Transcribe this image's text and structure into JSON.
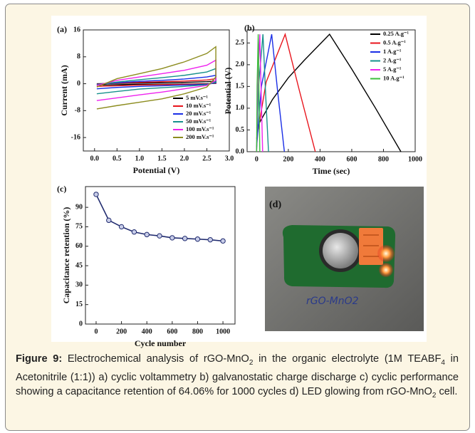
{
  "chart_data": [
    {
      "type": "line",
      "panel_label": "(a)",
      "xlabel": "Potential (V)",
      "ylabel": "Current (mA)",
      "x": [
        0.05,
        0.5,
        1.0,
        1.5,
        2.0,
        2.5,
        2.7,
        2.7,
        2.5,
        2.0,
        1.5,
        1.0,
        0.5,
        0.05
      ],
      "series": [
        {
          "name": "5 mV.s⁻¹",
          "color": "#000000",
          "values": [
            0,
            0.1,
            0.2,
            0.3,
            0.4,
            0.6,
            0.8,
            0.1,
            0,
            -0.1,
            -0.15,
            -0.2,
            -0.3,
            -0.4
          ]
        },
        {
          "name": "10 mV.s⁻¹",
          "color": "#e8141c",
          "values": [
            -0.1,
            0.2,
            0.4,
            0.6,
            0.8,
            1.1,
            1.5,
            0.2,
            -0.1,
            -0.2,
            -0.3,
            -0.4,
            -0.6,
            -0.8
          ]
        },
        {
          "name": "20 mV.s⁻¹",
          "color": "#1a2ee6",
          "values": [
            -0.2,
            0.3,
            0.7,
            1,
            1.4,
            2,
            2.5,
            0.3,
            -0.2,
            -0.4,
            -0.6,
            -0.8,
            -1.1,
            -1.5
          ]
        },
        {
          "name": "50 mV.s⁻¹",
          "color": "#17908c",
          "values": [
            -0.3,
            0.5,
            1.2,
            1.8,
            2.5,
            3.5,
            4.5,
            0.5,
            -0.3,
            -0.8,
            -1.2,
            -1.6,
            -2.3,
            -3
          ]
        },
        {
          "name": "100 mV.s⁻¹",
          "color": "#ee22ee",
          "values": [
            -0.5,
            1,
            2,
            3,
            4,
            5.5,
            7,
            1,
            -0.5,
            -1.5,
            -2.5,
            -3.3,
            -4.2,
            -5
          ]
        },
        {
          "name": "200 mV.s⁻¹",
          "color": "#8c8c1e",
          "values": [
            -1,
            1.5,
            3,
            4.5,
            6.5,
            9,
            11,
            2,
            -1,
            -3,
            -4.5,
            -5.5,
            -6.5,
            -7.5
          ]
        }
      ],
      "xlim": [
        -0.25,
        3.0
      ],
      "ylim": [
        -20,
        16
      ],
      "xticks": [
        {
          "value": 0,
          "label": "0.0"
        },
        0.5,
        {
          "value": 1,
          "label": "1.0"
        },
        1.5,
        {
          "value": 2,
          "label": "2.0"
        },
        2.5,
        {
          "value": 3,
          "label": "3.0"
        }
      ],
      "yticks": [
        -16,
        -8,
        0,
        8,
        16
      ],
      "legend": "lower right"
    },
    {
      "type": "line",
      "panel_label": "(b)",
      "xlabel": "Time (sec)",
      "ylabel": "Potential (V)",
      "series": [
        {
          "name": "0.25 A.g⁻¹",
          "color": "#000000",
          "x": [
            0,
            100,
            200,
            300,
            460,
            600,
            750,
            910
          ],
          "values": [
            0.55,
            1.2,
            1.7,
            2.1,
            2.7,
            1.9,
            1.0,
            0
          ]
        },
        {
          "name": "0.5 A.g⁻¹",
          "color": "#e8141c",
          "x": [
            0,
            60,
            180,
            270,
            370
          ],
          "values": [
            0.3,
            1.6,
            2.7,
            1.4,
            0
          ]
        },
        {
          "name": "1 A.g⁻¹",
          "color": "#1a2ee6",
          "x": [
            0,
            30,
            95,
            135,
            175
          ],
          "values": [
            0.1,
            1.5,
            2.7,
            1.3,
            0
          ]
        },
        {
          "name": "2 A.g⁻¹",
          "color": "#17908c",
          "x": [
            0,
            12,
            40,
            57,
            75
          ],
          "values": [
            0.05,
            1.5,
            2.7,
            1.3,
            0
          ]
        },
        {
          "name": "5 A.g⁻¹",
          "color": "#ee22ee",
          "x": [
            0,
            6,
            20,
            29,
            38
          ],
          "values": [
            0,
            1.5,
            2.7,
            1.3,
            0
          ]
        },
        {
          "name": "10 A.g⁻¹",
          "color": "#3bbf3b",
          "x": [
            0,
            3,
            10,
            15,
            20
          ],
          "values": [
            0,
            1.5,
            2.7,
            1.3,
            0
          ]
        }
      ],
      "xlim": [
        -60,
        1000
      ],
      "ylim": [
        0,
        2.8
      ],
      "xticks": [
        0,
        200,
        400,
        600,
        800,
        1000
      ],
      "yticks": [
        {
          "value": 0,
          "label": "0.0"
        },
        0.5,
        {
          "value": 1,
          "label": "1.0"
        },
        1.5,
        {
          "value": 2,
          "label": "2.0"
        },
        2.5
      ],
      "legend": "upper right"
    },
    {
      "type": "line",
      "panel_label": "(c)",
      "xlabel": "Cycle number",
      "ylabel": "Capacitance retention (%)",
      "x": [
        0,
        100,
        200,
        300,
        400,
        500,
        600,
        700,
        800,
        900,
        1000
      ],
      "values": [
        100,
        80,
        75,
        71,
        69,
        68,
        66.5,
        66,
        65.5,
        65,
        64.06
      ],
      "color": "#1f2a6e",
      "markers": true,
      "xlim": [
        -84,
        1095
      ],
      "ylim": [
        0,
        106
      ],
      "xticks": [
        0,
        200,
        400,
        600,
        800,
        1000
      ],
      "yticks": [
        0,
        15,
        30,
        45,
        60,
        75,
        90
      ]
    }
  ],
  "photo": {
    "label": "(d)",
    "handwriting": "rGO-MnO2"
  },
  "caption": {
    "label": "Figure 9:",
    "segments": [
      "Electrochemical analysis of rGO-MnO",
      "2",
      " in the organic electrolyte (1M TEABF",
      "4",
      " in Acetonitrile (1:1)) a) cyclic voltammetry b) galvanostatic charge discharge c) cyclic performance showing a capacitance retention of 64.06% for 1000 cycles d) LED glowing from rGO-MnO",
      "2",
      " cell."
    ]
  }
}
